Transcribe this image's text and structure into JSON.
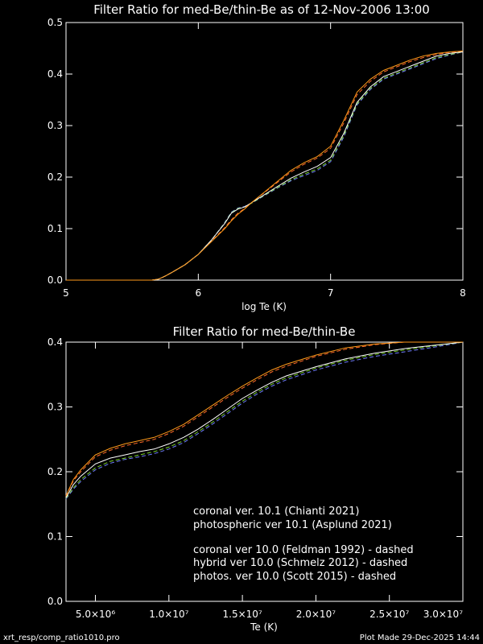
{
  "footer": {
    "left": "xrt_resp/comp_ratio1010.pro",
    "right": "Plot Made 29-Dec-2025 14:44"
  },
  "colors": {
    "background": "#000000",
    "axes": "#ffffff",
    "coronal_101": "#ffffff",
    "photospheric_101": "#ff9a1a",
    "coronal_100": "#6f7dff",
    "hybrid_100": "#7bd32b",
    "photos_100": "#ff6a2a"
  },
  "chart_data": [
    {
      "type": "line",
      "title": "Filter Ratio for med-Be/thin-Be as of 12-Nov-2006 13:00",
      "xlabel": "log Te (K)",
      "ylabel": "",
      "xlim": [
        5,
        8
      ],
      "ylim": [
        0,
        0.5
      ],
      "x_ticks": [
        "5",
        "6",
        "7",
        "8"
      ],
      "x_tick_values": [
        5,
        6,
        7,
        8
      ],
      "y_ticks": [
        "0.0",
        "0.1",
        "0.2",
        "0.3",
        "0.4",
        "0.5"
      ],
      "y_tick_values": [
        0,
        0.1,
        0.2,
        0.3,
        0.4,
        0.5
      ],
      "x": [
        5.0,
        5.5,
        5.65,
        5.7,
        5.75,
        5.8,
        5.9,
        6.0,
        6.1,
        6.2,
        6.25,
        6.3,
        6.35,
        6.4,
        6.5,
        6.6,
        6.7,
        6.8,
        6.9,
        7.0,
        7.1,
        7.2,
        7.3,
        7.4,
        7.5,
        7.6,
        7.7,
        7.8,
        7.9,
        8.0
      ],
      "series": [
        {
          "key": "coronal_101",
          "dashed": false,
          "values": [
            0,
            0,
            0.0,
            0.002,
            0.008,
            0.015,
            0.03,
            0.05,
            0.078,
            0.11,
            0.13,
            0.138,
            0.142,
            0.15,
            0.166,
            0.182,
            0.198,
            0.21,
            0.221,
            0.238,
            0.285,
            0.345,
            0.375,
            0.395,
            0.405,
            0.415,
            0.425,
            0.435,
            0.44,
            0.443
          ]
        },
        {
          "key": "photospheric_101",
          "dashed": false,
          "values": [
            0,
            0,
            0.0,
            0.002,
            0.008,
            0.015,
            0.03,
            0.05,
            0.075,
            0.1,
            0.115,
            0.128,
            0.138,
            0.15,
            0.171,
            0.192,
            0.213,
            0.228,
            0.24,
            0.26,
            0.31,
            0.365,
            0.39,
            0.407,
            0.417,
            0.427,
            0.435,
            0.44,
            0.443,
            0.445
          ]
        },
        {
          "key": "coronal_100",
          "dashed": true,
          "values": [
            0,
            0,
            0.0,
            0.002,
            0.008,
            0.015,
            0.03,
            0.05,
            0.078,
            0.112,
            0.132,
            0.14,
            0.143,
            0.149,
            0.164,
            0.179,
            0.193,
            0.203,
            0.213,
            0.23,
            0.278,
            0.34,
            0.37,
            0.39,
            0.4,
            0.41,
            0.42,
            0.43,
            0.437,
            0.443
          ]
        },
        {
          "key": "hybrid_100",
          "dashed": true,
          "values": [
            0,
            0,
            0.0,
            0.002,
            0.008,
            0.015,
            0.03,
            0.05,
            0.078,
            0.111,
            0.131,
            0.139,
            0.142,
            0.149,
            0.165,
            0.18,
            0.195,
            0.206,
            0.216,
            0.233,
            0.281,
            0.342,
            0.372,
            0.392,
            0.402,
            0.412,
            0.422,
            0.432,
            0.438,
            0.443
          ]
        },
        {
          "key": "photos_100",
          "dashed": true,
          "values": [
            0,
            0,
            0.0,
            0.002,
            0.008,
            0.015,
            0.03,
            0.05,
            0.076,
            0.102,
            0.117,
            0.13,
            0.139,
            0.15,
            0.17,
            0.19,
            0.21,
            0.225,
            0.237,
            0.256,
            0.305,
            0.36,
            0.386,
            0.404,
            0.414,
            0.424,
            0.432,
            0.438,
            0.442,
            0.444
          ]
        }
      ]
    },
    {
      "type": "line",
      "title": "Filter Ratio for med-Be/thin-Be",
      "xlabel": "Te (K)",
      "ylabel": "",
      "xlim": [
        3000000,
        30000000
      ],
      "ylim": [
        0,
        0.4
      ],
      "x_ticks": [
        "5.0×10⁶",
        "1.0×10⁷",
        "1.5×10⁷",
        "2.0×10⁷",
        "2.5×10⁷",
        "3.0×10⁷"
      ],
      "x_tick_values": [
        5000000,
        10000000,
        15000000,
        20000000,
        25000000,
        30000000
      ],
      "y_ticks": [
        "0.0",
        "0.1",
        "0.2",
        "0.3",
        "0.4"
      ],
      "y_tick_values": [
        0,
        0.1,
        0.2,
        0.3,
        0.4
      ],
      "x": [
        3000000,
        3500000,
        4000000,
        5000000,
        6000000,
        7000000,
        8000000,
        9000000,
        10000000,
        11000000,
        12000000,
        13000000,
        14000000,
        15000000,
        16000000,
        17000000,
        18000000,
        20000000,
        22000000,
        24000000,
        26000000,
        28000000,
        30000000
      ],
      "series": [
        {
          "key": "coronal_101",
          "dashed": false,
          "values": [
            0.16,
            0.18,
            0.193,
            0.212,
            0.221,
            0.226,
            0.231,
            0.235,
            0.243,
            0.253,
            0.266,
            0.281,
            0.297,
            0.313,
            0.326,
            0.338,
            0.348,
            0.362,
            0.374,
            0.383,
            0.39,
            0.395,
            0.4
          ]
        },
        {
          "key": "photospheric_101",
          "dashed": false,
          "values": [
            0.163,
            0.188,
            0.203,
            0.226,
            0.236,
            0.243,
            0.248,
            0.253,
            0.262,
            0.273,
            0.288,
            0.303,
            0.318,
            0.332,
            0.345,
            0.357,
            0.366,
            0.38,
            0.391,
            0.397,
            0.4,
            0.4,
            0.4
          ]
        },
        {
          "key": "coronal_100",
          "dashed": true,
          "values": [
            0.158,
            0.173,
            0.185,
            0.203,
            0.213,
            0.219,
            0.223,
            0.228,
            0.235,
            0.245,
            0.259,
            0.274,
            0.29,
            0.306,
            0.32,
            0.332,
            0.342,
            0.357,
            0.369,
            0.378,
            0.385,
            0.392,
            0.4
          ]
        },
        {
          "key": "hybrid_100",
          "dashed": true,
          "values": [
            0.159,
            0.175,
            0.188,
            0.206,
            0.216,
            0.221,
            0.226,
            0.231,
            0.238,
            0.248,
            0.262,
            0.277,
            0.293,
            0.309,
            0.323,
            0.335,
            0.345,
            0.36,
            0.372,
            0.381,
            0.388,
            0.394,
            0.4
          ]
        },
        {
          "key": "photos_100",
          "dashed": true,
          "values": [
            0.162,
            0.186,
            0.2,
            0.223,
            0.233,
            0.24,
            0.245,
            0.25,
            0.259,
            0.27,
            0.285,
            0.3,
            0.315,
            0.329,
            0.342,
            0.354,
            0.363,
            0.378,
            0.389,
            0.396,
            0.4,
            0.4,
            0.4
          ]
        }
      ]
    }
  ],
  "legend": [
    {
      "key": "coronal_101",
      "label": "coronal ver. 10.1 (Chianti 2021)"
    },
    {
      "key": "photospheric_101",
      "label": "photospheric ver 10.1 (Asplund 2021)"
    },
    {
      "key": "coronal_100",
      "label": "coronal ver 10.0 (Feldman 1992) - dashed"
    },
    {
      "key": "hybrid_100",
      "label": "hybrid ver 10.0 (Schmelz 2012) - dashed"
    },
    {
      "key": "photos_100",
      "label": "photos. ver 10.0 (Scott 2015) - dashed"
    }
  ]
}
